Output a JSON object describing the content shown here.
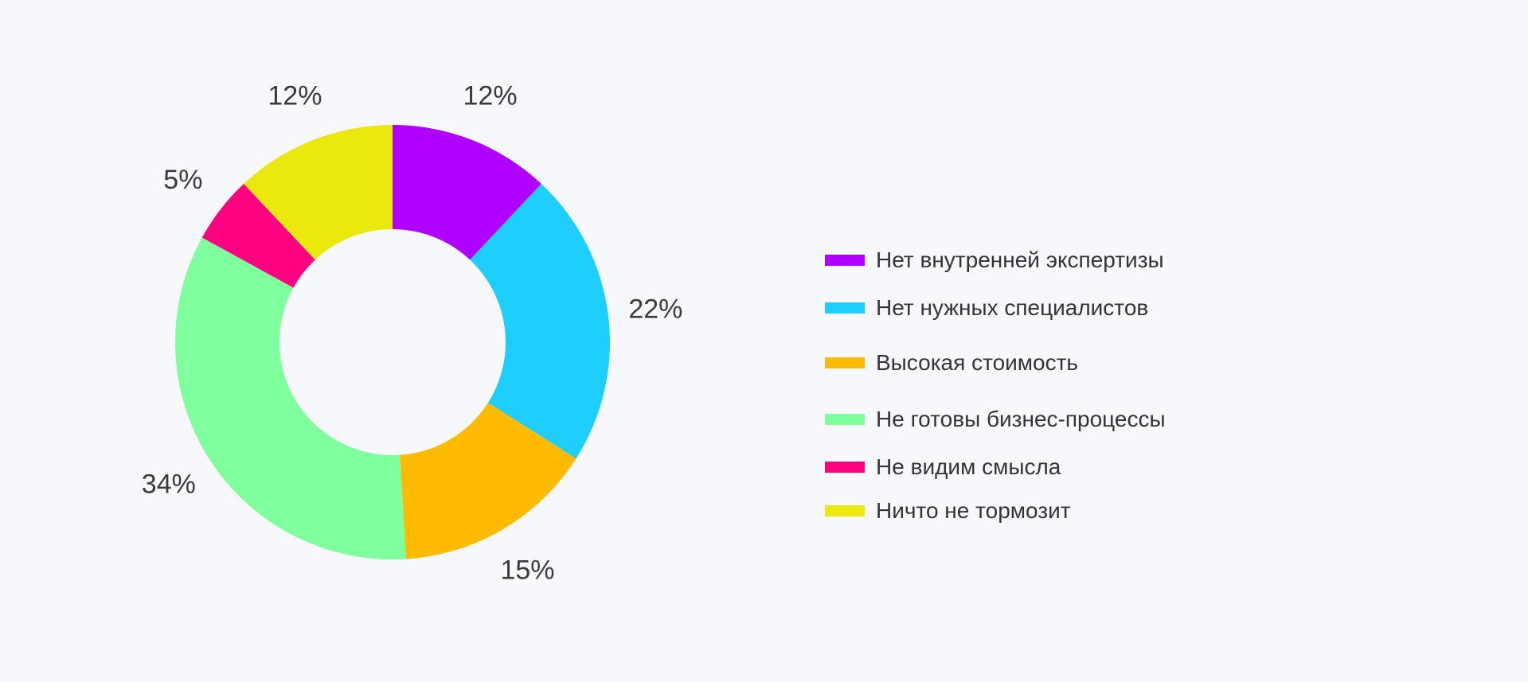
{
  "chart_data": {
    "type": "pie",
    "variant": "donut",
    "title": "",
    "legend_position": "right",
    "slices": [
      {
        "label": "Нет внутренней экспертизы",
        "value": 12,
        "display": "12%",
        "color": "#b000ff"
      },
      {
        "label": "Нет нужных специалистов",
        "value": 22,
        "display": "22%",
        "color": "#1ecefd"
      },
      {
        "label": "Высокая стоимость",
        "value": 15,
        "display": "15%",
        "color": "#ffbb00"
      },
      {
        "label": "Не готовы бизнес-процессы",
        "value": 34,
        "display": "34%",
        "color": "#80ff9f"
      },
      {
        "label": "Не видим смысла",
        "value": 5,
        "display": "5%",
        "color": "#ff0080"
      },
      {
        "label": "Ничто не тормозит",
        "value": 12,
        "display": "12%",
        "color": "#ebe80e"
      }
    ]
  }
}
